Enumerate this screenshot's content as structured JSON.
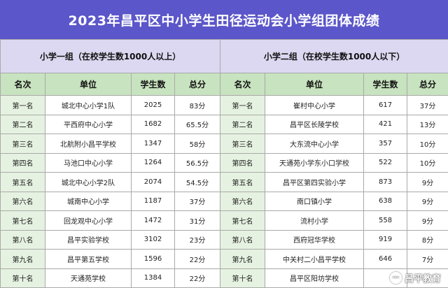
{
  "title": "2023年昌平区中小学生田径运动会小学组团体成绩",
  "watermark": {
    "icon": "chat-bubble-icon",
    "text": "昌平教育"
  },
  "headers": {
    "rank": "名次",
    "unit": "单位",
    "students": "学生数",
    "score": "总分"
  },
  "groups": [
    {
      "name": "小学一组（在校学生数1000人以上）",
      "rows": [
        {
          "rank": "第一名",
          "unit": "城北中心小学1队",
          "students": "2025",
          "score": "83分"
        },
        {
          "rank": "第二名",
          "unit": "平西府中心小学",
          "students": "1682",
          "score": "65.5分"
        },
        {
          "rank": "第三名",
          "unit": "北航附小昌平学校",
          "students": "1347",
          "score": "58分"
        },
        {
          "rank": "第四名",
          "unit": "马池口中心小学",
          "students": "1264",
          "score": "56.5分"
        },
        {
          "rank": "第五名",
          "unit": "城北中心小学2队",
          "students": "2074",
          "score": "54.5分"
        },
        {
          "rank": "第六名",
          "unit": "城南中心小学",
          "students": "1187",
          "score": "37分"
        },
        {
          "rank": "第七名",
          "unit": "回龙观中心小学",
          "students": "1472",
          "score": "31分"
        },
        {
          "rank": "第八名",
          "unit": "昌平实验学校",
          "students": "3102",
          "score": "23分"
        },
        {
          "rank": "第九名",
          "unit": "昌平第五学校",
          "students": "1596",
          "score": "22分"
        },
        {
          "rank": "第十名",
          "unit": "天通苑学校",
          "students": "1384",
          "score": "22分"
        }
      ]
    },
    {
      "name": "小学二组（在校学生数1000人以下）",
      "rows": [
        {
          "rank": "第一名",
          "unit": "崔村中心小学",
          "students": "617",
          "score": "37分"
        },
        {
          "rank": "第二名",
          "unit": "昌平区长陵学校",
          "students": "421",
          "score": "13分"
        },
        {
          "rank": "第三名",
          "unit": "大东流中心小学",
          "students": "357",
          "score": "10分"
        },
        {
          "rank": "第四名",
          "unit": "天通苑小学东小口学校",
          "students": "522",
          "score": "10分"
        },
        {
          "rank": "第五名",
          "unit": "昌平区第四实验小学",
          "students": "873",
          "score": "9分"
        },
        {
          "rank": "第六名",
          "unit": "南口镇小学",
          "students": "638",
          "score": "9分"
        },
        {
          "rank": "第七名",
          "unit": "流村小学",
          "students": "558",
          "score": "9分"
        },
        {
          "rank": "第八名",
          "unit": "西府冠华学校",
          "students": "919",
          "score": "8分"
        },
        {
          "rank": "第九名",
          "unit": "中关村二小昌平学校",
          "students": "646",
          "score": "7分"
        },
        {
          "rank": "第十名",
          "unit": "昌平区阳坊学校",
          "students": "",
          "score": ""
        }
      ]
    }
  ]
}
